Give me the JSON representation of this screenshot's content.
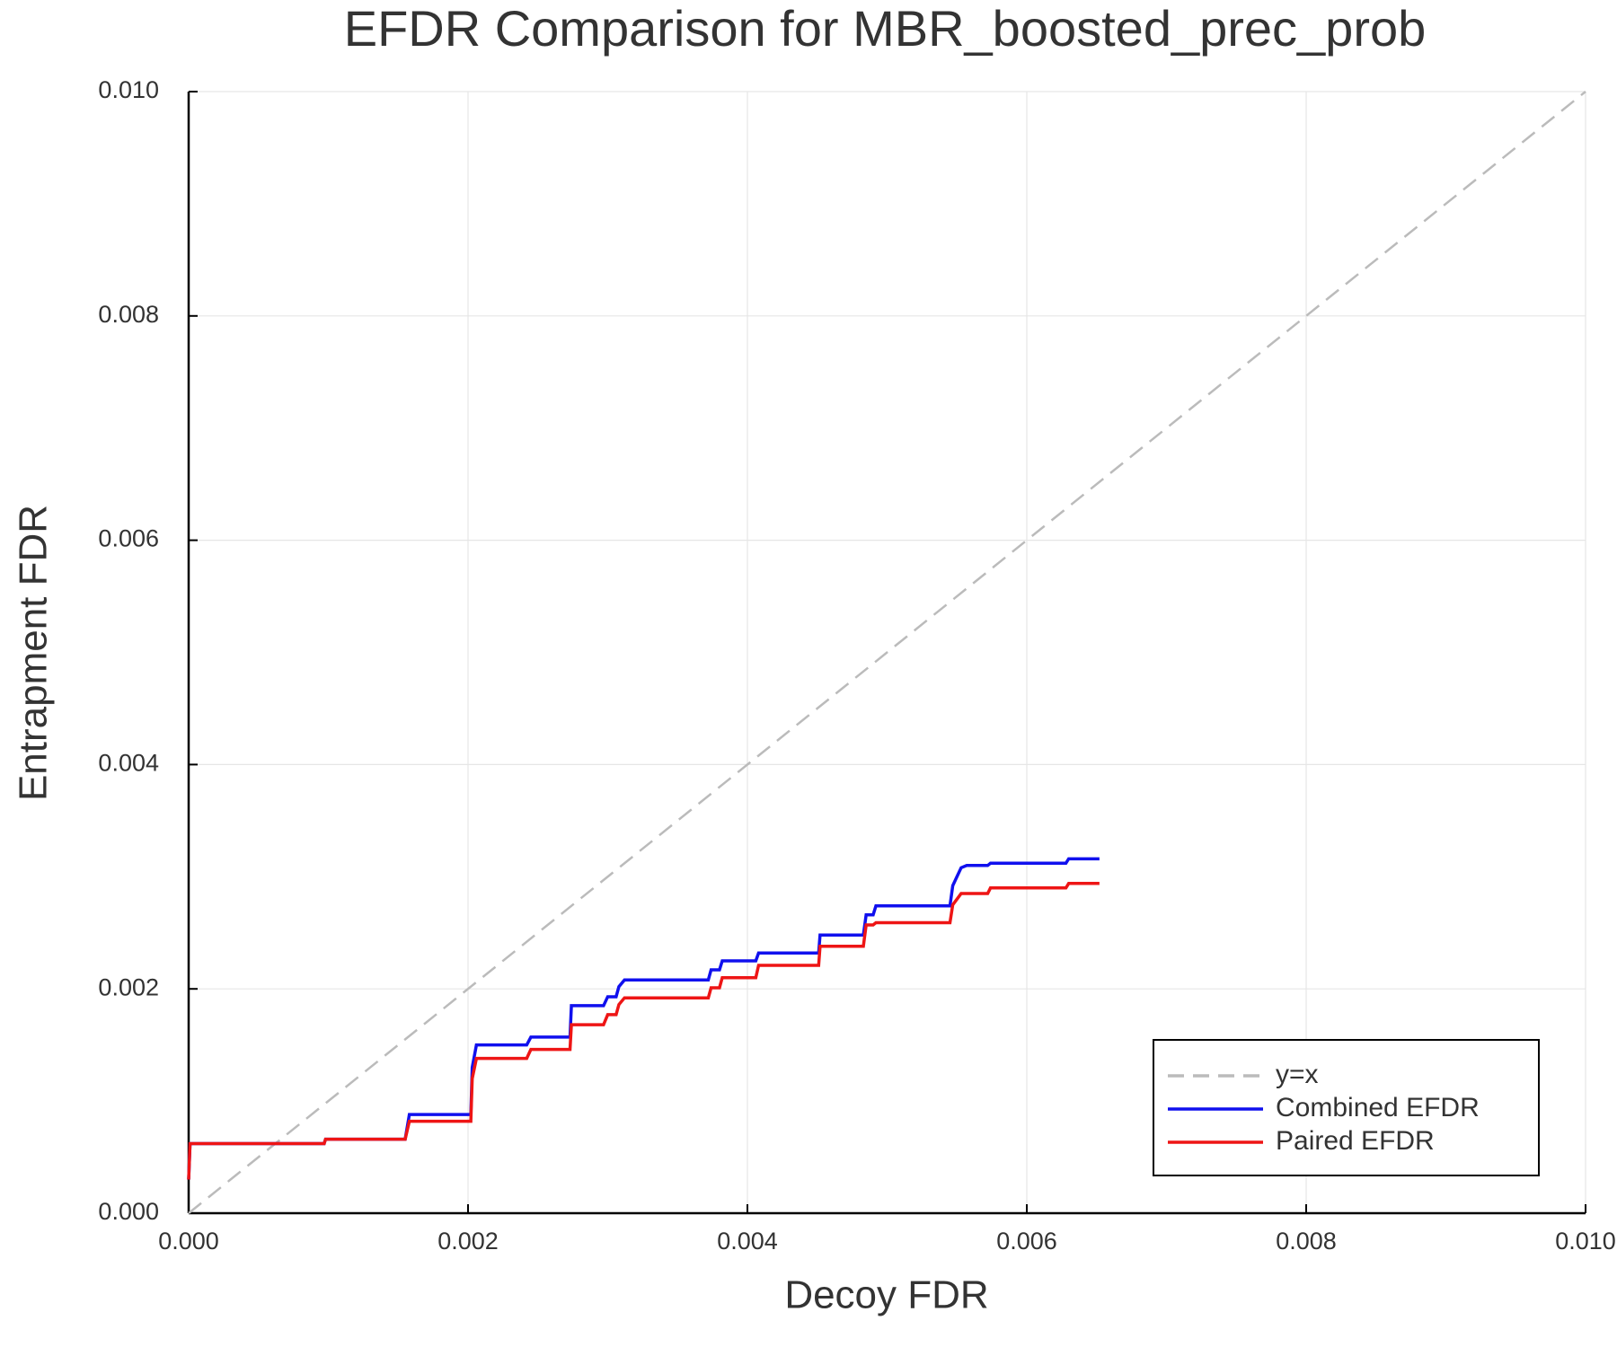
{
  "chart_data": {
    "type": "line",
    "title": "EFDR Comparison for MBR_boosted_prec_prob",
    "x_label": "Decoy FDR",
    "y_label": "Entrapment FDR",
    "xlim": [
      0,
      0.01
    ],
    "ylim": [
      0,
      0.01
    ],
    "xticks": [
      {
        "value": 0,
        "label": "0.000"
      },
      {
        "value": 0.002,
        "label": "0.002"
      },
      {
        "value": 0.004,
        "label": "0.004"
      },
      {
        "value": 0.006,
        "label": "0.006"
      },
      {
        "value": 0.008,
        "label": "0.008"
      },
      {
        "value": 0.01,
        "label": "0.010"
      }
    ],
    "yticks": [
      {
        "value": 0,
        "label": "0.000"
      },
      {
        "value": 0.002,
        "label": "0.002"
      },
      {
        "value": 0.004,
        "label": "0.004"
      },
      {
        "value": 0.006,
        "label": "0.006"
      },
      {
        "value": 0.008,
        "label": "0.008"
      },
      {
        "value": 0.01,
        "label": "0.010"
      }
    ],
    "grid": true,
    "legend": "lower right",
    "series": [
      {
        "name": "y=x",
        "color": "#bbbbbb",
        "dashed": true,
        "x": [
          0,
          0.01
        ],
        "values": [
          0,
          0.01
        ]
      },
      {
        "name": "Combined EFDR",
        "color": "#1010ee",
        "dashed": false,
        "x": [
          0,
          1e-05,
          0.00097,
          0.00098,
          0.00155,
          0.00158,
          0.00202,
          0.00203,
          0.00206,
          0.00242,
          0.00245,
          0.00273,
          0.00274,
          0.00297,
          0.003,
          0.00306,
          0.00308,
          0.00312,
          0.00372,
          0.00374,
          0.0038,
          0.00382,
          0.00406,
          0.00408,
          0.00451,
          0.00452,
          0.00483,
          0.00485,
          0.0049,
          0.00492,
          0.00545,
          0.00547,
          0.0055,
          0.00553,
          0.00557,
          0.00572,
          0.00574,
          0.00628,
          0.0063,
          0.00652
        ],
        "values": [
          0.0003,
          0.00062,
          0.00062,
          0.00066,
          0.00066,
          0.00088,
          0.00088,
          0.0013,
          0.0015,
          0.0015,
          0.00157,
          0.00157,
          0.00185,
          0.00185,
          0.00193,
          0.00193,
          0.00202,
          0.00208,
          0.00208,
          0.00217,
          0.00217,
          0.00225,
          0.00225,
          0.00232,
          0.00232,
          0.00248,
          0.00248,
          0.00266,
          0.00266,
          0.00274,
          0.00274,
          0.00292,
          0.003,
          0.00308,
          0.0031,
          0.0031,
          0.00312,
          0.00312,
          0.00316,
          0.00316
        ]
      },
      {
        "name": "Paired EFDR",
        "color": "#ee1515",
        "dashed": false,
        "x": [
          0,
          1e-05,
          0.00097,
          0.00098,
          0.00155,
          0.00158,
          0.00202,
          0.00203,
          0.00206,
          0.00242,
          0.00245,
          0.00273,
          0.00274,
          0.00297,
          0.003,
          0.00306,
          0.00308,
          0.00312,
          0.00372,
          0.00374,
          0.0038,
          0.00382,
          0.00406,
          0.00408,
          0.00451,
          0.00452,
          0.00483,
          0.00485,
          0.0049,
          0.00492,
          0.00545,
          0.00547,
          0.0055,
          0.00553,
          0.00572,
          0.00574,
          0.00628,
          0.0063,
          0.00652
        ],
        "values": [
          0.0003,
          0.00062,
          0.00062,
          0.00066,
          0.00066,
          0.00082,
          0.00082,
          0.0012,
          0.00138,
          0.00138,
          0.00146,
          0.00146,
          0.00168,
          0.00168,
          0.00177,
          0.00177,
          0.00186,
          0.00192,
          0.00192,
          0.00201,
          0.00201,
          0.0021,
          0.0021,
          0.00221,
          0.00221,
          0.00238,
          0.00238,
          0.00257,
          0.00257,
          0.00259,
          0.00259,
          0.00275,
          0.0028,
          0.00285,
          0.00285,
          0.0029,
          0.0029,
          0.00294,
          0.00294
        ]
      }
    ]
  }
}
